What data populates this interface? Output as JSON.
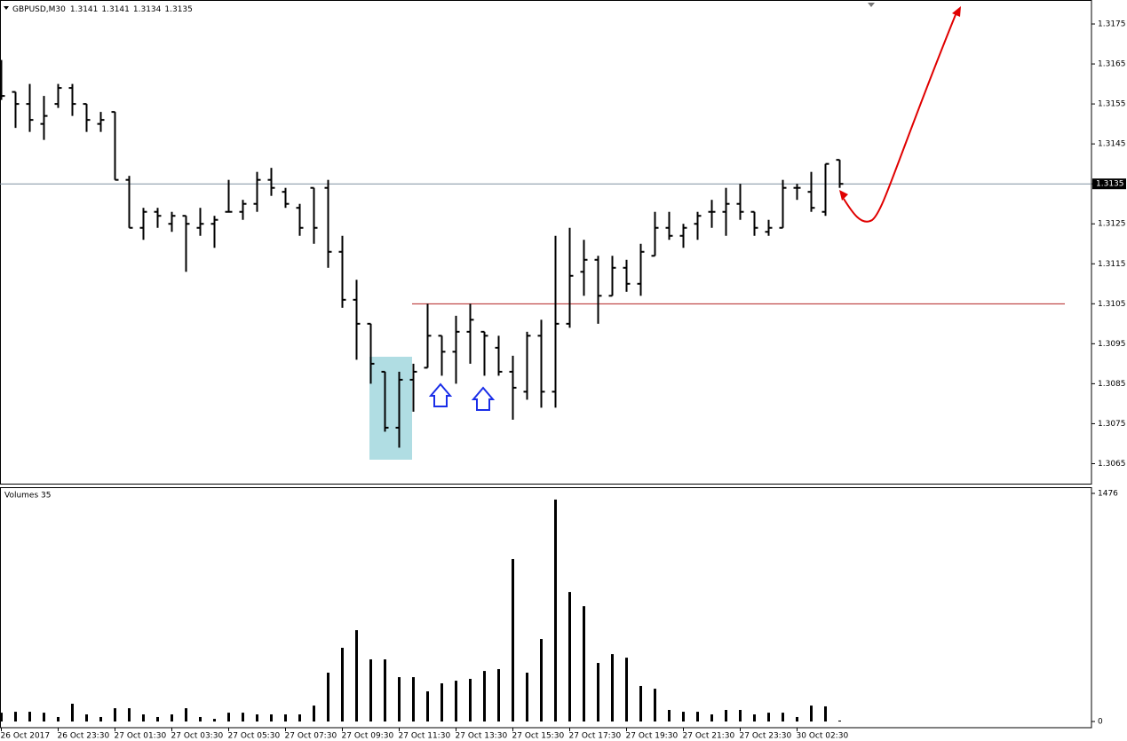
{
  "chart_data": [
    {
      "type": "ohlc",
      "title": "GBPUSD,M30",
      "color": "#000000",
      "categories": [
        "26 Oct 2017",
        null,
        null,
        null,
        "26 Oct 23:30",
        null,
        null,
        null,
        "27 Oct 01:30",
        null,
        null,
        null,
        "27 Oct 03:30",
        null,
        null,
        null,
        "27 Oct 05:30",
        null,
        null,
        null,
        "27 Oct 07:30",
        null,
        null,
        null,
        "27 Oct 09:30",
        null,
        null,
        null,
        "27 Oct 11:30",
        null,
        null,
        null,
        "27 Oct 13:30",
        null,
        null,
        null,
        "27 Oct 15:30",
        null,
        null,
        null,
        "27 Oct 17:30",
        null,
        null,
        null,
        "27 Oct 19:30",
        null,
        null,
        null,
        "27 Oct 21:30",
        null,
        null,
        null,
        "27 Oct 23:30",
        null,
        null,
        null,
        "30 Oct 02:30",
        null,
        null,
        null
      ],
      "open": [
        1.3161,
        1.3158,
        1.3155,
        1.315,
        1.3155,
        1.3159,
        1.3155,
        1.315,
        1.3153,
        1.3136,
        1.3124,
        1.3128,
        1.3125,
        1.3127,
        1.3124,
        1.3125,
        1.3128,
        1.3128,
        1.313,
        1.3136,
        1.3133,
        1.3129,
        1.3134,
        1.3134,
        1.3118,
        1.3106,
        1.31,
        1.3088,
        1.3074,
        1.3086,
        1.3089,
        1.3097,
        1.3093,
        1.3098,
        1.3098,
        1.3094,
        1.3088,
        1.3083,
        1.3097,
        1.3083,
        1.31,
        1.3113,
        1.3116,
        1.3107,
        1.3114,
        1.311,
        1.3117,
        1.3124,
        1.3122,
        1.3125,
        1.3128,
        1.3128,
        1.313,
        1.3128,
        1.3123,
        1.3124,
        1.3134,
        1.3133,
        1.3128,
        1.3141
      ],
      "high": [
        1.3166,
        1.3158,
        1.316,
        1.3157,
        1.316,
        1.316,
        1.3155,
        1.3153,
        1.3153,
        1.3137,
        1.3129,
        1.3129,
        1.3128,
        1.3127,
        1.3129,
        1.3127,
        1.3136,
        1.3131,
        1.3138,
        1.3139,
        1.3134,
        1.313,
        1.3134,
        1.3136,
        1.3122,
        1.3111,
        1.31,
        1.3088,
        1.3088,
        1.309,
        1.3105,
        1.3097,
        1.3102,
        1.3105,
        1.3098,
        1.3097,
        1.3092,
        1.3098,
        1.3101,
        1.3122,
        1.3124,
        1.3121,
        1.3117,
        1.3117,
        1.3116,
        1.312,
        1.3128,
        1.3128,
        1.3125,
        1.3128,
        1.3131,
        1.3134,
        1.3135,
        1.3128,
        1.3126,
        1.3136,
        1.3135,
        1.3138,
        1.314,
        1.3141
      ],
      "low": [
        1.3156,
        1.3149,
        1.3148,
        1.3146,
        1.3154,
        1.3152,
        1.3148,
        1.3148,
        1.3136,
        1.3124,
        1.3121,
        1.3124,
        1.3123,
        1.3113,
        1.3122,
        1.3119,
        1.3128,
        1.3126,
        1.3128,
        1.3132,
        1.3129,
        1.3122,
        1.312,
        1.3114,
        1.3104,
        1.3091,
        1.3085,
        1.3073,
        1.3069,
        1.3078,
        1.3089,
        1.3087,
        1.3085,
        1.309,
        1.3087,
        1.3087,
        1.3076,
        1.3081,
        1.3079,
        1.3079,
        1.3099,
        1.3107,
        1.31,
        1.3107,
        1.3108,
        1.3107,
        1.3117,
        1.3121,
        1.3119,
        1.3121,
        1.3124,
        1.3122,
        1.3126,
        1.3122,
        1.3122,
        1.3124,
        1.3131,
        1.3128,
        1.3127,
        1.3134
      ],
      "close": [
        1.3157,
        1.3155,
        1.3151,
        1.3152,
        1.3159,
        1.3155,
        1.3151,
        1.3151,
        1.3136,
        1.3124,
        1.3128,
        1.3127,
        1.3127,
        1.3125,
        1.3125,
        1.3126,
        1.3128,
        1.313,
        1.3136,
        1.3134,
        1.313,
        1.3124,
        1.3124,
        1.3118,
        1.3106,
        1.31,
        1.309,
        1.3074,
        1.3086,
        1.3088,
        1.3097,
        1.3093,
        1.3098,
        1.3101,
        1.3097,
        1.3088,
        1.3084,
        1.3097,
        1.3083,
        1.31,
        1.3112,
        1.3116,
        1.3107,
        1.3114,
        1.311,
        1.3118,
        1.3124,
        1.3122,
        1.3124,
        1.3127,
        1.3128,
        1.313,
        1.3128,
        1.3124,
        1.3124,
        1.3134,
        1.3134,
        1.3129,
        1.314,
        1.3135
      ],
      "ylim": [
        1.306,
        1.3181
      ],
      "yticks": [
        1.3175,
        1.3165,
        1.3155,
        1.3145,
        1.3135,
        1.3125,
        1.3115,
        1.3105,
        1.3095,
        1.3085,
        1.3075,
        1.3065
      ],
      "current_price": 1.3135,
      "current_price_color": "#8090a0",
      "level": 1.3105,
      "level_color": "#b22222"
    },
    {
      "type": "bar",
      "title": "Volumes 35",
      "color": "#000000",
      "values": [
        57,
        63,
        63,
        57,
        29,
        115,
        46,
        29,
        86,
        86,
        46,
        29,
        46,
        86,
        29,
        17,
        57,
        57,
        46,
        46,
        46,
        46,
        103,
        316,
        477,
        591,
        402,
        402,
        287,
        287,
        195,
        247,
        264,
        276,
        327,
        339,
        1051,
        316,
        534,
        1436,
        838,
        746,
        379,
        436,
        413,
        230,
        212,
        75,
        63,
        63,
        46,
        75,
        75,
        46,
        57,
        57,
        29,
        103,
        98,
        6
      ],
      "ylim": [
        -40,
        1516
      ],
      "yticks": [
        0,
        1476
      ]
    }
  ]
}
